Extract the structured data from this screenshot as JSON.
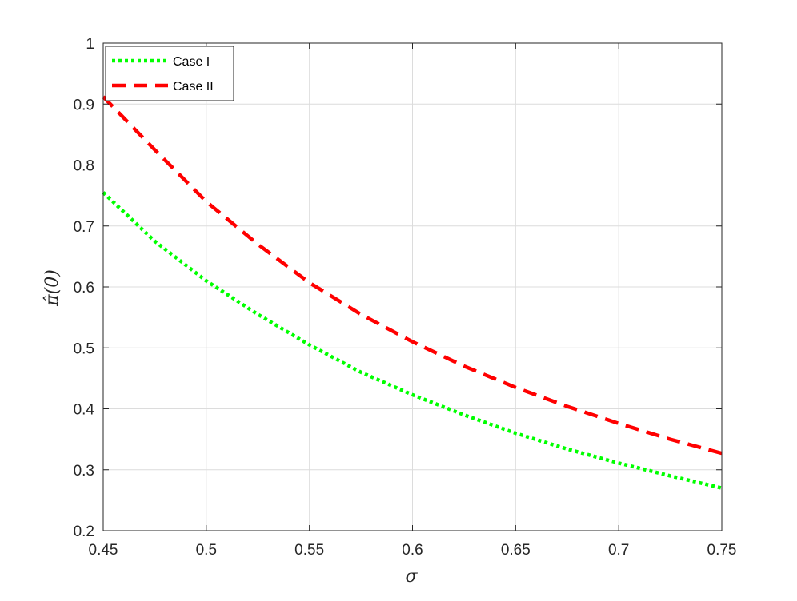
{
  "chart_data": {
    "type": "line",
    "title": "",
    "xlabel": "σ",
    "ylabel": "π̂(0)",
    "xlim": [
      0.45,
      0.75
    ],
    "ylim": [
      0.2,
      1.0
    ],
    "xticks": [
      0.45,
      0.5,
      0.55,
      0.6,
      0.65,
      0.7,
      0.75
    ],
    "xtick_labels": [
      "0.45",
      "0.5",
      "0.55",
      "0.6",
      "0.65",
      "0.7",
      "0.75"
    ],
    "yticks": [
      0.2,
      0.3,
      0.4,
      0.5,
      0.6,
      0.7,
      0.8,
      0.9,
      1.0
    ],
    "ytick_labels": [
      "0.2",
      "0.3",
      "0.4",
      "0.5",
      "0.6",
      "0.7",
      "0.8",
      "0.9",
      "1"
    ],
    "grid": true,
    "legend_position": "top-left",
    "series": [
      {
        "name": "Case I",
        "color": "#00ff00",
        "style": "dotted",
        "x": [
          0.45,
          0.475,
          0.5,
          0.525,
          0.55,
          0.575,
          0.6,
          0.625,
          0.65,
          0.675,
          0.7,
          0.725,
          0.75
        ],
        "y": [
          0.755,
          0.675,
          0.61,
          0.555,
          0.505,
          0.46,
          0.423,
          0.39,
          0.36,
          0.334,
          0.311,
          0.29,
          0.27
        ]
      },
      {
        "name": "Case II",
        "color": "#ff0000",
        "style": "dashed",
        "x": [
          0.45,
          0.475,
          0.5,
          0.525,
          0.55,
          0.575,
          0.6,
          0.625,
          0.65,
          0.675,
          0.7,
          0.725,
          0.75
        ],
        "y": [
          0.912,
          0.825,
          0.74,
          0.67,
          0.607,
          0.555,
          0.51,
          0.47,
          0.435,
          0.404,
          0.376,
          0.35,
          0.327
        ]
      }
    ]
  }
}
